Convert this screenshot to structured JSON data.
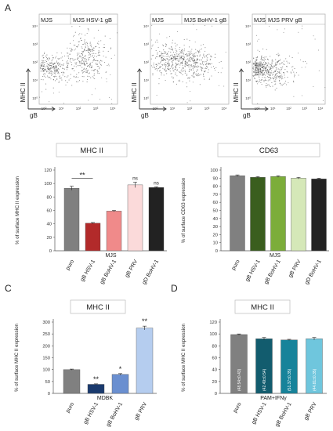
{
  "panel_letters": [
    "A",
    "B",
    "C",
    "D"
  ],
  "flow_panels": [
    {
      "left_label": "MJS",
      "right_label": "MJS HSV-1 gB",
      "y_axis": "MHC II",
      "x_axis": "gB",
      "ticks": [
        "10⁰",
        "10¹",
        "10²",
        "10³",
        "10⁴"
      ]
    },
    {
      "left_label": "MJS",
      "right_label": "MJS BoHV-1 gB",
      "y_axis": "MHC II",
      "x_axis": "gB",
      "ticks": [
        "10⁰",
        "10¹",
        "10²",
        "10³",
        "10⁴"
      ]
    },
    {
      "left_label": "MJS",
      "right_label": "MJS PRV gB",
      "y_axis": "MHC II",
      "x_axis": "gB",
      "ticks": [
        "10⁰",
        "10¹",
        "10²",
        "10³",
        "10⁴"
      ]
    }
  ],
  "chart_data": [
    {
      "type": "bar",
      "panel": "B",
      "title": "MHC II",
      "ylabel": "% of surface MHC II expression",
      "xlabel": "MJS",
      "categories": [
        "puro",
        "gB HSV-1",
        "gB BoHV-1",
        "gB PRV",
        "gD BoHV-1"
      ],
      "values": [
        93,
        41,
        59,
        98,
        94
      ],
      "errors": [
        3,
        1,
        1,
        4,
        1
      ],
      "colors": [
        "#808080",
        "#b22a2a",
        "#f08a8a",
        "#fbdada",
        "#222222"
      ],
      "annotations": [
        "",
        "**",
        "",
        "ns",
        "ns"
      ],
      "ylim": [
        0,
        120
      ],
      "yticks": [
        0,
        20,
        40,
        60,
        80,
        100,
        120
      ]
    },
    {
      "type": "bar",
      "panel": "B",
      "title": "CD63",
      "ylabel": "% of surface CD63 expression",
      "xlabel": "MJS",
      "categories": [
        "puro",
        "gB HSV-1",
        "gB BoHV-1",
        "gB PRV",
        "gD BoHV-1"
      ],
      "values": [
        93,
        91,
        92,
        90,
        89
      ],
      "errors": [
        1,
        1,
        1,
        1,
        1
      ],
      "colors": [
        "#808080",
        "#3a5e1e",
        "#7cad3a",
        "#d5e8b8",
        "#222222"
      ],
      "ylim": [
        0,
        100
      ],
      "yticks": [
        0,
        10,
        20,
        30,
        40,
        50,
        60,
        70,
        80,
        90,
        100
      ]
    },
    {
      "type": "bar",
      "panel": "C",
      "title": "MHC II",
      "ylabel": "% of surface MHC II expression",
      "xlabel": "MDBK",
      "categories": [
        "puro",
        "gB HSV-1",
        "gB BoHV-1",
        "gB PRV"
      ],
      "values": [
        100,
        38,
        80,
        275
      ],
      "errors": [
        2,
        2,
        3,
        8
      ],
      "colors": [
        "#808080",
        "#1a3a6e",
        "#6a8fd0",
        "#b5cdef"
      ],
      "annotations": [
        "",
        "**",
        "*",
        "**"
      ],
      "ylim": [
        0,
        300
      ],
      "yticks": [
        0,
        50,
        100,
        150,
        200,
        250,
        300
      ]
    },
    {
      "type": "bar",
      "panel": "D",
      "title": "MHC II",
      "ylabel": "% of surface MHC II expression",
      "xlabel": "PAM+IFNγ",
      "categories": [
        "puro",
        "gB HSV-1",
        "gB BoHV-1",
        "gB PRV"
      ],
      "values": [
        99,
        92,
        90,
        92
      ],
      "errors": [
        1,
        2,
        1,
        2
      ],
      "colors": [
        "#808080",
        "#125c6e",
        "#17839a",
        "#6fc6dd"
      ],
      "bar_labels": [
        "(48.54±0.43)",
        "(42.49±0.54)",
        "(51.37±0.35)",
        "(44.81±0.35)"
      ],
      "ylim": [
        0,
        120
      ],
      "yticks": [
        0,
        20,
        40,
        60,
        80,
        100,
        120
      ]
    }
  ]
}
